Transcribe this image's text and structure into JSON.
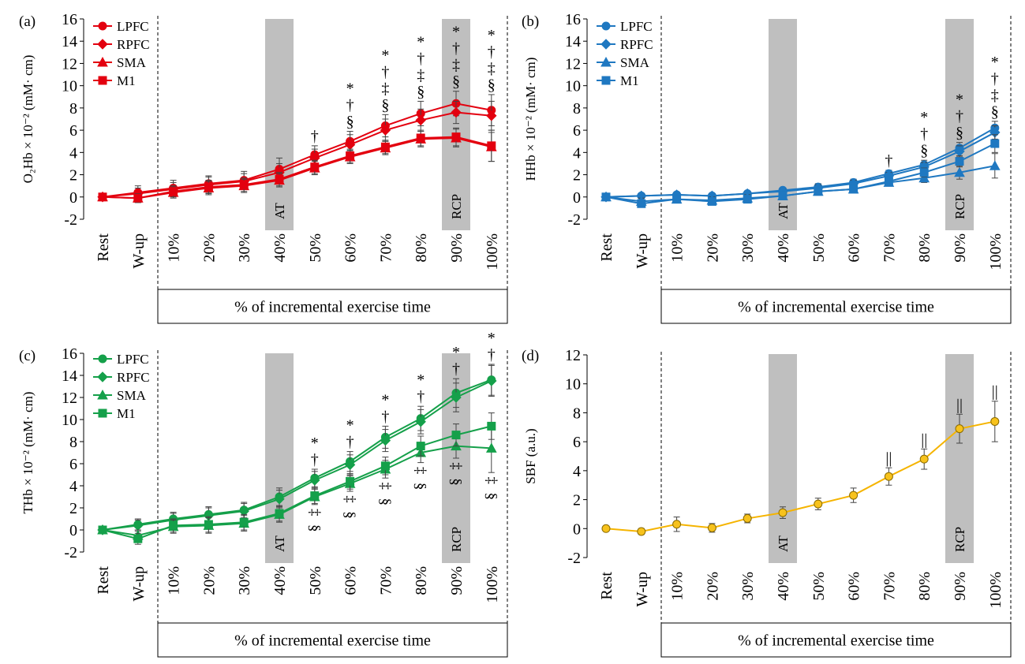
{
  "figure": {
    "xlabel": "% of incremental exercise time",
    "x_categories": [
      "Rest",
      "W-up",
      "10%",
      "20%",
      "30%",
      "40%",
      "50%",
      "60%",
      "70%",
      "80%",
      "90%",
      "100%"
    ],
    "shade_labels": [
      "AT",
      "RCP"
    ]
  },
  "chart_data": [
    {
      "type": "line",
      "panel": "(a)",
      "title": "",
      "ylabel": "O₂Hb × 10⁻² (mM· cm)",
      "ylim": [
        -2,
        16
      ],
      "yticks": [
        -2,
        0,
        2,
        4,
        6,
        8,
        10,
        12,
        14,
        16
      ],
      "color": "#e3000f",
      "legend_position": "top-left",
      "shaded_categories": [
        "40%",
        "90%"
      ],
      "categories": [
        "Rest",
        "W-up",
        "10%",
        "20%",
        "30%",
        "40%",
        "50%",
        "60%",
        "70%",
        "80%",
        "90%",
        "100%"
      ],
      "series": [
        {
          "name": "LPFC",
          "marker": "circle",
          "values": [
            0,
            0.4,
            0.8,
            1.2,
            1.5,
            2.5,
            3.8,
            5.0,
            6.4,
            7.5,
            8.4,
            7.8
          ],
          "errors": [
            0,
            0.6,
            0.7,
            0.7,
            0.8,
            1.0,
            0.8,
            0.9,
            1.0,
            1.1,
            1.1,
            1.4
          ]
        },
        {
          "name": "RPFC",
          "marker": "diamond",
          "values": [
            0,
            0.3,
            0.7,
            1.1,
            1.4,
            2.2,
            3.5,
            4.7,
            6.0,
            6.9,
            7.6,
            7.3
          ],
          "errors": [
            0,
            0.5,
            0.6,
            0.7,
            0.7,
            0.8,
            0.8,
            0.9,
            1.0,
            1.0,
            1.0,
            1.3
          ]
        },
        {
          "name": "SMA",
          "marker": "triangle",
          "values": [
            0,
            -0.1,
            0.4,
            0.8,
            1.0,
            1.5,
            2.6,
            3.6,
            4.4,
            5.2,
            5.3,
            4.5
          ],
          "errors": [
            0,
            0.4,
            0.5,
            0.6,
            0.6,
            0.6,
            0.6,
            0.6,
            0.6,
            0.7,
            0.8,
            1.3
          ]
        },
        {
          "name": "M1",
          "marker": "square",
          "values": [
            0,
            -0.1,
            0.5,
            0.9,
            1.1,
            1.6,
            2.7,
            3.7,
            4.5,
            5.3,
            5.4,
            4.6
          ],
          "errors": [
            0,
            0.4,
            0.5,
            0.6,
            0.6,
            0.6,
            0.6,
            0.6,
            0.6,
            0.7,
            0.8,
            1.4
          ]
        }
      ],
      "annotations": [
        {
          "category": "50%",
          "symbols": [
            "†"
          ]
        },
        {
          "category": "60%",
          "symbols": [
            "*",
            "†",
            "§"
          ]
        },
        {
          "category": "70%",
          "symbols": [
            "*",
            "†",
            "‡",
            "§"
          ]
        },
        {
          "category": "80%",
          "symbols": [
            "*",
            "†",
            "‡",
            "§"
          ]
        },
        {
          "category": "90%",
          "symbols": [
            "*",
            "†",
            "‡",
            "§"
          ]
        },
        {
          "category": "100%",
          "symbols": [
            "*",
            "†",
            "‡",
            "§"
          ]
        }
      ]
    },
    {
      "type": "line",
      "panel": "(b)",
      "title": "",
      "ylabel": "HHb × 10⁻² (mM· cm)",
      "ylim": [
        -2,
        16
      ],
      "yticks": [
        -2,
        0,
        2,
        4,
        6,
        8,
        10,
        12,
        14,
        16
      ],
      "color": "#1f78c1",
      "legend_position": "top-left",
      "shaded_categories": [
        "40%",
        "90%"
      ],
      "categories": [
        "Rest",
        "W-up",
        "10%",
        "20%",
        "30%",
        "40%",
        "50%",
        "60%",
        "70%",
        "80%",
        "90%",
        "100%"
      ],
      "series": [
        {
          "name": "LPFC",
          "marker": "circle",
          "values": [
            0,
            0.1,
            0.2,
            0.1,
            0.3,
            0.6,
            0.9,
            1.3,
            2.1,
            2.9,
            4.4,
            6.2
          ],
          "errors": [
            0,
            0.2,
            0.2,
            0.2,
            0.2,
            0.2,
            0.3,
            0.3,
            0.3,
            0.4,
            0.5,
            0.6
          ]
        },
        {
          "name": "RPFC",
          "marker": "diamond",
          "values": [
            0,
            0.1,
            0.2,
            0.1,
            0.3,
            0.5,
            0.8,
            1.2,
            1.9,
            2.7,
            4.1,
            5.8
          ],
          "errors": [
            0,
            0.2,
            0.2,
            0.2,
            0.2,
            0.2,
            0.3,
            0.3,
            0.3,
            0.4,
            0.5,
            0.6
          ]
        },
        {
          "name": "SMA",
          "marker": "triangle",
          "values": [
            0,
            -0.4,
            -0.2,
            -0.3,
            -0.1,
            0.1,
            0.5,
            0.7,
            1.3,
            1.7,
            2.2,
            2.8
          ],
          "errors": [
            0,
            0.3,
            0.3,
            0.3,
            0.3,
            0.3,
            0.3,
            0.3,
            0.3,
            0.4,
            0.6,
            1.1
          ]
        },
        {
          "name": "M1",
          "marker": "square",
          "values": [
            0,
            -0.6,
            -0.2,
            -0.4,
            -0.2,
            0.1,
            0.5,
            0.7,
            1.4,
            2.2,
            3.2,
            4.8
          ],
          "errors": [
            0,
            0.3,
            0.3,
            0.3,
            0.3,
            0.3,
            0.3,
            0.3,
            0.3,
            0.4,
            0.5,
            0.8
          ]
        }
      ],
      "annotations": [
        {
          "category": "70%",
          "symbols": [
            "†"
          ]
        },
        {
          "category": "80%",
          "symbols": [
            "*",
            "†",
            "§"
          ]
        },
        {
          "category": "90%",
          "symbols": [
            "*",
            "†",
            "§"
          ]
        },
        {
          "category": "100%",
          "symbols": [
            "*",
            "†",
            "‡",
            "§"
          ]
        }
      ]
    },
    {
      "type": "line",
      "panel": "(c)",
      "title": "",
      "ylabel": "THb × 10⁻² (mM· cm)",
      "ylim": [
        -2,
        16
      ],
      "yticks": [
        -2,
        0,
        2,
        4,
        6,
        8,
        10,
        12,
        14,
        16
      ],
      "color": "#15a04a",
      "legend_position": "top-left",
      "shaded_categories": [
        "40%",
        "90%"
      ],
      "categories": [
        "Rest",
        "W-up",
        "10%",
        "20%",
        "30%",
        "40%",
        "50%",
        "60%",
        "70%",
        "80%",
        "90%",
        "100%"
      ],
      "series": [
        {
          "name": "LPFC",
          "marker": "circle",
          "values": [
            0,
            0.5,
            1.0,
            1.4,
            1.8,
            3.0,
            4.7,
            6.2,
            8.4,
            10.1,
            12.4,
            13.6
          ],
          "errors": [
            0,
            0.5,
            0.6,
            0.7,
            0.7,
            0.8,
            0.8,
            0.9,
            1.0,
            1.1,
            1.3,
            1.4
          ]
        },
        {
          "name": "RPFC",
          "marker": "diamond",
          "values": [
            0,
            0.4,
            0.9,
            1.3,
            1.7,
            2.8,
            4.5,
            5.9,
            8.1,
            9.8,
            12.0,
            13.5
          ],
          "errors": [
            0,
            0.5,
            0.6,
            0.7,
            0.7,
            0.8,
            0.8,
            0.9,
            1.0,
            1.1,
            1.3,
            1.4
          ]
        },
        {
          "name": "SMA",
          "marker": "triangle",
          "values": [
            0,
            -0.5,
            0.3,
            0.4,
            0.6,
            1.4,
            3.0,
            4.2,
            5.5,
            7.0,
            7.6,
            7.4
          ],
          "errors": [
            0,
            0.5,
            0.6,
            0.7,
            0.7,
            0.7,
            0.7,
            0.7,
            0.8,
            0.9,
            1.1,
            2.2
          ]
        },
        {
          "name": "M1",
          "marker": "square",
          "values": [
            0,
            -0.8,
            0.4,
            0.5,
            0.7,
            1.5,
            3.1,
            4.4,
            5.8,
            7.6,
            8.6,
            9.4
          ],
          "errors": [
            0,
            0.5,
            0.6,
            0.7,
            0.7,
            0.7,
            0.7,
            0.7,
            0.8,
            0.9,
            1.0,
            1.2
          ]
        }
      ],
      "annotations": [
        {
          "category": "50%",
          "symbols": [
            "*",
            "†"
          ]
        },
        {
          "category": "60%",
          "symbols": [
            "*",
            "†"
          ]
        },
        {
          "category": "70%",
          "symbols": [
            "*",
            "†"
          ]
        },
        {
          "category": "80%",
          "symbols": [
            "*",
            "†"
          ]
        },
        {
          "category": "90%",
          "symbols": [
            "*",
            "†"
          ]
        },
        {
          "category": "100%",
          "symbols": [
            "*",
            "†"
          ]
        }
      ],
      "annotations_below": [
        {
          "category": "50%",
          "symbols": [
            "‡",
            "§"
          ]
        },
        {
          "category": "60%",
          "symbols": [
            "‡",
            "§"
          ]
        },
        {
          "category": "70%",
          "symbols": [
            "‡",
            "§"
          ]
        },
        {
          "category": "80%",
          "symbols": [
            "‡",
            "§"
          ]
        },
        {
          "category": "90%",
          "symbols": [
            "‡",
            "§"
          ]
        },
        {
          "category": "100%",
          "symbols": [
            "‡",
            "§"
          ]
        }
      ]
    },
    {
      "type": "line",
      "panel": "(d)",
      "title": "",
      "ylabel": "SBF (a.u.)",
      "ylim": [
        -2,
        12
      ],
      "yticks": [
        -2,
        0,
        2,
        4,
        6,
        8,
        10,
        12
      ],
      "color": "#f5b400",
      "marker_fill": "#f7c21c",
      "legend_position": "none",
      "shaded_categories": [
        "40%",
        "90%"
      ],
      "categories": [
        "Rest",
        "W-up",
        "10%",
        "20%",
        "30%",
        "40%",
        "50%",
        "60%",
        "70%",
        "80%",
        "90%",
        "100%"
      ],
      "series": [
        {
          "marker": "circle",
          "values": [
            0,
            -0.2,
            0.3,
            0.05,
            0.7,
            1.1,
            1.7,
            2.3,
            3.6,
            4.8,
            6.9,
            7.4
          ],
          "errors": [
            0,
            0.2,
            0.5,
            0.3,
            0.3,
            0.4,
            0.4,
            0.5,
            0.6,
            0.7,
            1.0,
            1.4
          ]
        }
      ],
      "annotations": [
        {
          "category": "70%",
          "symbols": [
            "||"
          ]
        },
        {
          "category": "80%",
          "symbols": [
            "||"
          ]
        },
        {
          "category": "90%",
          "symbols": [
            "||"
          ]
        },
        {
          "category": "100%",
          "symbols": [
            "||"
          ]
        }
      ]
    }
  ]
}
